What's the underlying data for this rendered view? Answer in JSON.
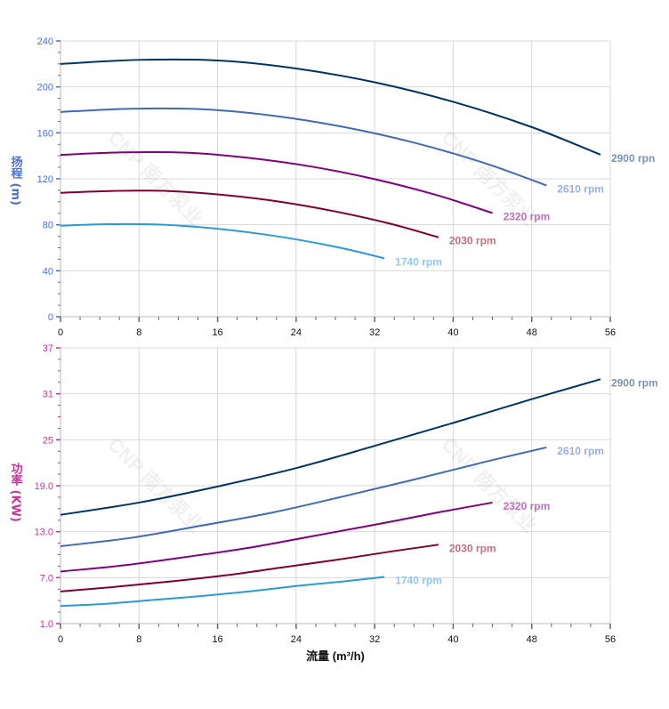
{
  "watermark": "CNP 南方泵业",
  "chart_data": [
    {
      "type": "line",
      "ylabel": "扬程 (m)",
      "ylabel_chars": [
        "扬",
        "程",
        "(m)"
      ],
      "xlim": [
        0,
        56
      ],
      "ylim": [
        0,
        240
      ],
      "xticks": [
        0,
        8,
        16,
        24,
        32,
        40,
        48,
        56
      ],
      "yticks": [
        0,
        40,
        80,
        120,
        160,
        200,
        240
      ],
      "ytick_labels": [
        "0",
        "40",
        "80",
        "120",
        "160",
        "200",
        "240"
      ],
      "grid": true,
      "axis_color": "#4a6ee0",
      "series": [
        {
          "name": "2900 rpm",
          "label_text": "2900 rpn",
          "color": "#003366",
          "label_color": "#7f93a8",
          "x": [
            0,
            8,
            16,
            24,
            32,
            40,
            48,
            55
          ],
          "y": [
            220,
            223.5,
            223,
            216,
            204,
            187,
            165,
            141
          ]
        },
        {
          "name": "2610 rpm",
          "label_text": "2610 rpm",
          "color": "#4169b8",
          "label_color": "#9aaee0",
          "x": [
            0,
            7.2,
            14.4,
            21.6,
            28.8,
            36,
            43.2,
            49.5
          ],
          "y": [
            178.2,
            181.0,
            180.6,
            175.0,
            165.2,
            151.5,
            133.7,
            114.2
          ]
        },
        {
          "name": "2320 rpm",
          "label_text": "2320 rpm",
          "color": "#800080",
          "label_color": "#bf70bf",
          "x": [
            0,
            6.4,
            12.8,
            19.2,
            25.6,
            32,
            38.4,
            44
          ],
          "y": [
            140.8,
            143.0,
            142.7,
            138.2,
            130.6,
            119.7,
            105.6,
            90.2
          ]
        },
        {
          "name": "2030 rpm",
          "label_text": "2030 rpm",
          "color": "#800030",
          "label_color": "#c07080",
          "x": [
            0,
            5.6,
            11.2,
            16.8,
            22.4,
            28,
            33.6,
            38.5
          ],
          "y": [
            107.8,
            109.5,
            109.3,
            105.8,
            100.0,
            91.6,
            80.9,
            69.1
          ]
        },
        {
          "name": "1740 rpm",
          "label_text": "1740 rpm",
          "color": "#2a9ad8",
          "label_color": "#90c8ee",
          "x": [
            0,
            4.8,
            9.6,
            14.4,
            19.2,
            24,
            28.8,
            33
          ],
          "y": [
            79.2,
            80.5,
            80.3,
            77.8,
            73.4,
            67.3,
            59.4,
            50.8
          ]
        }
      ]
    },
    {
      "type": "line",
      "xlabel": "流量 (m³/h)",
      "ylabel": "功率 (KW)",
      "ylabel_chars": [
        "功",
        "率",
        "(KW)"
      ],
      "xlim": [
        0,
        56
      ],
      "ylim": [
        1,
        37
      ],
      "xticks": [
        0,
        8,
        16,
        24,
        32,
        40,
        48,
        56
      ],
      "yticks": [
        1,
        7,
        13,
        19,
        25,
        31,
        37
      ],
      "ytick_labels": [
        "1.0",
        "7.0",
        "13.0",
        "19.0",
        "25",
        "31",
        "37"
      ],
      "grid": true,
      "axis_color": "#cc3399",
      "series": [
        {
          "name": "2900 rpm",
          "label_text": "2900 rpm",
          "color": "#003366",
          "label_color": "#7f93a8",
          "x": [
            0,
            8,
            16,
            24,
            32,
            40,
            48,
            55
          ],
          "y": [
            15.2,
            16.8,
            18.9,
            21.3,
            24.2,
            27.2,
            30.3,
            32.9
          ]
        },
        {
          "name": "2610 rpm",
          "label_text": "2610 rpm",
          "color": "#4169b8",
          "label_color": "#9aaee0",
          "x": [
            0,
            7.2,
            14.4,
            21.6,
            28.8,
            36,
            43.2,
            49.5
          ],
          "y": [
            11.1,
            12.2,
            13.8,
            15.5,
            17.6,
            19.8,
            22.1,
            24.0
          ]
        },
        {
          "name": "2320 rpm",
          "label_text": "2320 rpm",
          "color": "#800080",
          "label_color": "#bf70bf",
          "x": [
            0,
            6.4,
            12.8,
            19.2,
            25.6,
            32,
            38.4,
            44
          ],
          "y": [
            7.8,
            8.6,
            9.7,
            10.9,
            12.4,
            13.9,
            15.5,
            16.8
          ]
        },
        {
          "name": "2030 rpm",
          "label_text": "2030 rpm",
          "color": "#800030",
          "label_color": "#c07080",
          "x": [
            0,
            5.6,
            11.2,
            16.8,
            22.4,
            28,
            33.6,
            38.5
          ],
          "y": [
            5.2,
            5.8,
            6.5,
            7.3,
            8.3,
            9.3,
            10.4,
            11.3
          ]
        },
        {
          "name": "1740 rpm",
          "label_text": "1740 rpm",
          "color": "#2a9ad8",
          "label_color": "#90c8ee",
          "x": [
            0,
            4.8,
            9.6,
            14.4,
            19.2,
            24,
            28.8,
            33
          ],
          "y": [
            3.3,
            3.6,
            4.1,
            4.6,
            5.2,
            5.9,
            6.5,
            7.1
          ]
        }
      ]
    }
  ]
}
